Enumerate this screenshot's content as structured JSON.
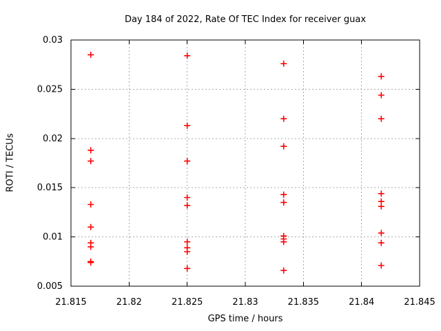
{
  "chart_data": {
    "type": "scatter",
    "title": "Day 184 of 2022, Rate Of TEC Index for receiver guax",
    "xlabel": "GPS time / hours",
    "ylabel": "ROTI / TECUs",
    "xlim": [
      21.815,
      21.845
    ],
    "ylim": [
      0.005,
      0.03
    ],
    "xticks": [
      21.815,
      21.82,
      21.825,
      21.83,
      21.835,
      21.84,
      21.845
    ],
    "xtick_labels": [
      "21.815",
      "21.82",
      "21.825",
      "21.83",
      "21.835",
      "21.84",
      "21.845"
    ],
    "yticks": [
      0.005,
      0.01,
      0.015,
      0.02,
      0.025,
      0.03
    ],
    "ytick_labels": [
      "0.005",
      "0.01",
      "0.015",
      "0.02",
      "0.025",
      "0.03"
    ],
    "grid": true,
    "legend": "none",
    "marker": "plus",
    "marker_color": "#ff0000",
    "grid_color": "#a8a8a8",
    "frame_color": "#000000",
    "background": "#ffffff",
    "points": [
      [
        21.8167,
        0.0285
      ],
      [
        21.8167,
        0.0188
      ],
      [
        21.8167,
        0.0177
      ],
      [
        21.8167,
        0.0133
      ],
      [
        21.8167,
        0.011
      ],
      [
        21.8167,
        0.0094
      ],
      [
        21.8167,
        0.009
      ],
      [
        21.8167,
        0.0075
      ],
      [
        21.8167,
        0.0074
      ],
      [
        21.825,
        0.0284
      ],
      [
        21.825,
        0.0213
      ],
      [
        21.825,
        0.0177
      ],
      [
        21.825,
        0.014
      ],
      [
        21.825,
        0.0132
      ],
      [
        21.825,
        0.0095
      ],
      [
        21.825,
        0.0089
      ],
      [
        21.825,
        0.0085
      ],
      [
        21.825,
        0.0068
      ],
      [
        21.8333,
        0.0276
      ],
      [
        21.8333,
        0.022
      ],
      [
        21.8333,
        0.0192
      ],
      [
        21.8333,
        0.0143
      ],
      [
        21.8333,
        0.0135
      ],
      [
        21.8333,
        0.0101
      ],
      [
        21.8333,
        0.0098
      ],
      [
        21.8333,
        0.0095
      ],
      [
        21.8333,
        0.0066
      ],
      [
        21.8417,
        0.0263
      ],
      [
        21.8417,
        0.0244
      ],
      [
        21.8417,
        0.022
      ],
      [
        21.8417,
        0.0144
      ],
      [
        21.8417,
        0.0136
      ],
      [
        21.8417,
        0.0131
      ],
      [
        21.8417,
        0.0104
      ],
      [
        21.8417,
        0.0094
      ],
      [
        21.8417,
        0.0071
      ]
    ]
  }
}
